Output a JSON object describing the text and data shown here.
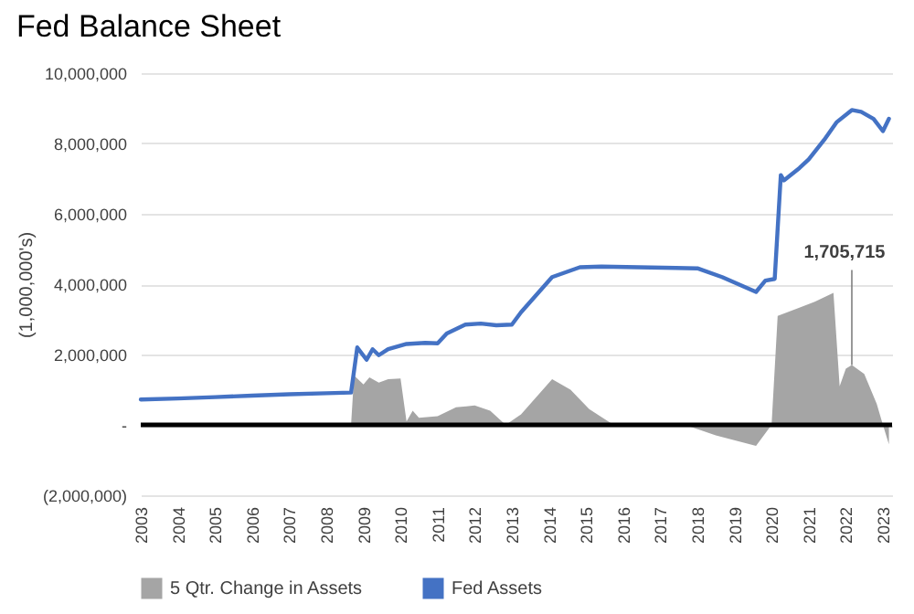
{
  "chart_data": {
    "type": "line",
    "title": "Fed Balance Sheet",
    "ylabel": "(1,000,000's)",
    "xlim": [
      "2003",
      "2023-04"
    ],
    "xticks": [
      "2003",
      "2004",
      "2005",
      "2006",
      "2007",
      "2008",
      "2009",
      "2010",
      "2011",
      "2012",
      "2013",
      "2014",
      "2015",
      "2016",
      "2017",
      "2018",
      "2019",
      "2020",
      "2021",
      "2022",
      "2023"
    ],
    "ylim": [
      -2000000,
      10000000
    ],
    "yticks": [
      {
        "value": -2000000,
        "label": "(2,000,000)"
      },
      {
        "value": 0,
        "label": "-"
      },
      {
        "value": 2000000,
        "label": "2,000,000"
      },
      {
        "value": 4000000,
        "label": "4,000,000"
      },
      {
        "value": 6000000,
        "label": "6,000,000"
      },
      {
        "value": 8000000,
        "label": "8,000,000"
      },
      {
        "value": 10000000,
        "label": "10,000,000"
      }
    ],
    "grid": "y",
    "legend": "bottom",
    "ref_lines": [
      {
        "axis": "y",
        "value": 0,
        "color": "#000000"
      }
    ],
    "annotations": [
      {
        "text": "1,705,715",
        "x": "2022-03",
        "y": 1700000
      }
    ],
    "series": [
      {
        "name": "5 Qtr. Change in Assets",
        "type": "area",
        "color": "#a5a5a5",
        "x": [
          "2008-09",
          "2008-10",
          "2009-01",
          "2009-03",
          "2009-06",
          "2009-09",
          "2010-01",
          "2010-03",
          "2010-05",
          "2010-07",
          "2011-01",
          "2011-07",
          "2012-01",
          "2012-06",
          "2012-11",
          "2013-04",
          "2014-02",
          "2014-08",
          "2015-02",
          "2015-09",
          "2016-06",
          "2017-09",
          "2018-07",
          "2019-08",
          "2020-01",
          "2020-03",
          "2020-09",
          "2021-03",
          "2021-09",
          "2021-11",
          "2022-01",
          "2022-03",
          "2022-07",
          "2022-11",
          "2023-01",
          "2023-03"
        ],
        "values": [
          0,
          1400000,
          1150000,
          1350000,
          1200000,
          1300000,
          1320000,
          100000,
          400000,
          200000,
          250000,
          500000,
          550000,
          400000,
          0,
          300000,
          1300000,
          1000000,
          450000,
          50000,
          0,
          0,
          -300000,
          -600000,
          0,
          3100000,
          3300000,
          3500000,
          3750000,
          1100000,
          1600000,
          1700000,
          1450000,
          600000,
          0,
          -550000
        ]
      },
      {
        "name": "Fed Assets",
        "color": "#4472c4",
        "x": [
          "2003-01",
          "2004-01",
          "2005-01",
          "2006-01",
          "2007-01",
          "2008-01",
          "2008-09",
          "2008-11",
          "2009-02",
          "2009-04",
          "2009-06",
          "2009-09",
          "2010-03",
          "2010-09",
          "2011-01",
          "2011-04",
          "2011-10",
          "2012-03",
          "2012-08",
          "2013-01",
          "2013-04",
          "2014-02",
          "2014-11",
          "2015-06",
          "2016-06",
          "2017-06",
          "2018-01",
          "2018-09",
          "2019-08",
          "2019-11",
          "2020-02",
          "2020-04",
          "2020-05",
          "2020-10",
          "2021-01",
          "2021-06",
          "2021-10",
          "2022-03",
          "2022-06",
          "2022-10",
          "2023-01",
          "2023-03"
        ],
        "values": [
          720000,
          750000,
          790000,
          830000,
          870000,
          900000,
          920000,
          2200000,
          1850000,
          2150000,
          1980000,
          2150000,
          2300000,
          2330000,
          2320000,
          2600000,
          2850000,
          2880000,
          2830000,
          2850000,
          3200000,
          4200000,
          4480000,
          4500000,
          4480000,
          4460000,
          4450000,
          4200000,
          3780000,
          4100000,
          4150000,
          7100000,
          6950000,
          7300000,
          7550000,
          8100000,
          8600000,
          8950000,
          8900000,
          8700000,
          8350000,
          8700000
        ]
      }
    ]
  }
}
